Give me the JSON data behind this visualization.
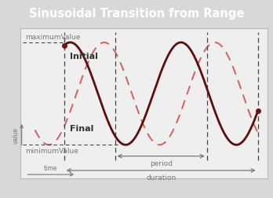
{
  "title": "Sinusoidal Transition from Range",
  "title_bg": "#525252",
  "title_fg": "#ffffff",
  "bg_color": "#d8d8d8",
  "plot_bg": "#efefef",
  "border_color": "#bbbbbb",
  "solid_color": "#5a0f0f",
  "dashed_color": "#d06060",
  "dot_color": "#6b1515",
  "label_color": "#777777",
  "dark_label_color": "#333333",
  "max_label": "maximumValue",
  "min_label": "minimumValue",
  "initial_label": "Initial",
  "final_label": "Final",
  "period_label": "period",
  "duration_label": "duration",
  "ylabel": "value",
  "xlabel": "time",
  "vline_color": "#444444",
  "hline_color": "#888888"
}
